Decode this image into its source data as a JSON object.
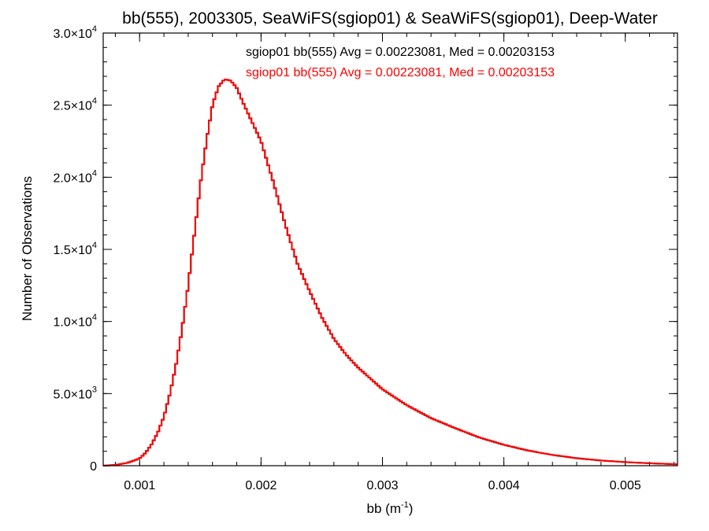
{
  "chart_data": {
    "type": "histogram-step",
    "title": "bb(555), 2003305, SeaWiFS(sgiop01) & SeaWiFS(sgiop01), Deep-Water",
    "xlabel_base": "bb (m",
    "xlabel_exp": "-1",
    "xlabel_tail": ")",
    "ylabel": "Number of Observations",
    "xlim": [
      0.0007,
      0.00543
    ],
    "ylim": [
      0,
      30000
    ],
    "x_ticks": [
      0.001,
      0.002,
      0.003,
      0.004,
      0.005
    ],
    "x_tick_labels": [
      "0.001",
      "0.002",
      "0.003",
      "0.004",
      "0.005"
    ],
    "x_minor_step": 0.0002,
    "y_ticks": [
      0,
      5000,
      10000,
      15000,
      20000,
      25000,
      30000
    ],
    "y_tick_labels": [
      {
        "base": "0",
        "exp": ""
      },
      {
        "base": "5.0×10",
        "exp": "3"
      },
      {
        "base": "1.0×10",
        "exp": "4"
      },
      {
        "base": "1.5×10",
        "exp": "4"
      },
      {
        "base": "2.0×10",
        "exp": "4"
      },
      {
        "base": "2.5×10",
        "exp": "4"
      },
      {
        "base": "3.0×10",
        "exp": "4"
      }
    ],
    "y_minor_step": 1000,
    "grid": false,
    "series": [
      {
        "name": "sgiop01 bb(555) Avg = 0.00223081, Med = 0.00203153",
        "color": "#000000",
        "x": [
          0.0007,
          0.0008,
          0.0009,
          0.001,
          0.00105,
          0.0011,
          0.00115,
          0.0012,
          0.00125,
          0.0013,
          0.00135,
          0.0014,
          0.00145,
          0.0015,
          0.00155,
          0.0016,
          0.00165,
          0.0017,
          0.00175,
          0.0018,
          0.00185,
          0.0019,
          0.002,
          0.0021,
          0.0022,
          0.0023,
          0.0024,
          0.0025,
          0.0026,
          0.0027,
          0.0028,
          0.003,
          0.0032,
          0.0034,
          0.0036,
          0.0038,
          0.004,
          0.0042,
          0.0044,
          0.0046,
          0.0048,
          0.005,
          0.0052,
          0.00543
        ],
        "values": [
          0,
          50,
          200,
          500,
          900,
          1500,
          2300,
          3400,
          5000,
          7000,
          9500,
          12500,
          16000,
          19500,
          22500,
          25000,
          26300,
          26800,
          26700,
          26200,
          25200,
          24300,
          22500,
          19700,
          16700,
          14000,
          12100,
          10300,
          8800,
          7700,
          6800,
          5300,
          4200,
          3300,
          2600,
          1950,
          1450,
          1050,
          750,
          520,
          360,
          250,
          170,
          100
        ]
      },
      {
        "name": "sgiop01 bb(555) Avg = 0.00223081, Med = 0.00203153",
        "color": "#ff0000",
        "x": [
          0.0007,
          0.0008,
          0.0009,
          0.001,
          0.00105,
          0.0011,
          0.00115,
          0.0012,
          0.00125,
          0.0013,
          0.00135,
          0.0014,
          0.00145,
          0.0015,
          0.00155,
          0.0016,
          0.00165,
          0.0017,
          0.00175,
          0.0018,
          0.00185,
          0.0019,
          0.002,
          0.0021,
          0.0022,
          0.0023,
          0.0024,
          0.0025,
          0.0026,
          0.0027,
          0.0028,
          0.003,
          0.0032,
          0.0034,
          0.0036,
          0.0038,
          0.004,
          0.0042,
          0.0044,
          0.0046,
          0.0048,
          0.005,
          0.0052,
          0.00543
        ],
        "values": [
          0,
          50,
          200,
          500,
          900,
          1500,
          2300,
          3400,
          5000,
          7000,
          9500,
          12500,
          16000,
          19500,
          22500,
          25000,
          26300,
          26800,
          26700,
          26200,
          25200,
          24300,
          22500,
          19700,
          16700,
          14000,
          12100,
          10300,
          8800,
          7700,
          6800,
          5300,
          4200,
          3300,
          2600,
          1950,
          1450,
          1050,
          750,
          520,
          360,
          250,
          170,
          100
        ]
      }
    ]
  }
}
